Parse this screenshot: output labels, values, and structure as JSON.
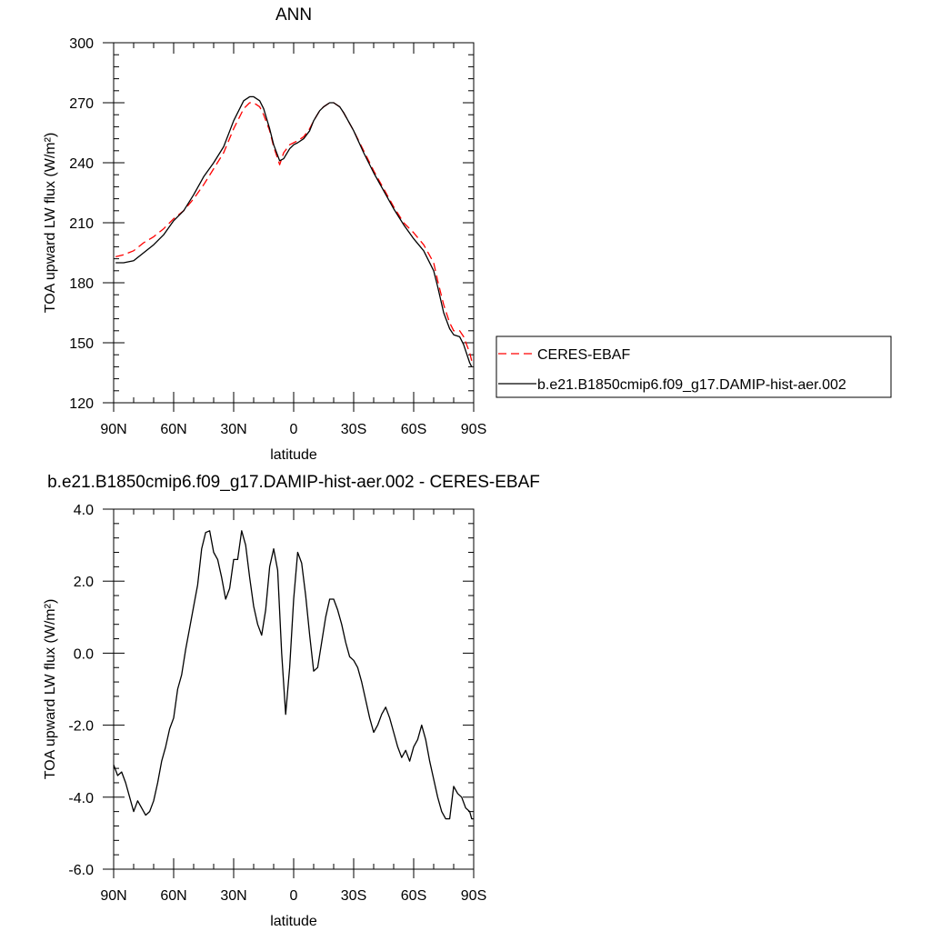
{
  "chart_data": [
    {
      "type": "line",
      "title": "ANN",
      "xlabel": "latitude",
      "ylabel": "TOA upward LW flux (W/m²)",
      "ylim": [
        120,
        300
      ],
      "yticks": [
        120,
        150,
        180,
        210,
        240,
        270,
        300
      ],
      "xlim": [
        90,
        -90
      ],
      "xticks": [
        90,
        60,
        30,
        0,
        -30,
        -60,
        -90
      ],
      "xticklabels": [
        "90N",
        "60N",
        "30N",
        "0",
        "30S",
        "60S",
        "90S"
      ],
      "legend": "outside-right",
      "series": [
        {
          "name": "CERES-EBAF",
          "color": "#ff0000",
          "dash": "dashed",
          "x": [
            89,
            85,
            80,
            75,
            70,
            65,
            60,
            55,
            50,
            45,
            40,
            35,
            30,
            25,
            22,
            20,
            17,
            15,
            12,
            10,
            7,
            5,
            2,
            0,
            -2,
            -5,
            -8,
            -10,
            -13,
            -15,
            -18,
            -20,
            -23,
            -25,
            -30,
            -35,
            -40,
            -45,
            -50,
            -55,
            -60,
            -65,
            -70,
            -72,
            -75,
            -78,
            -80,
            -83,
            -85,
            -88,
            -89
          ],
          "y": [
            193,
            194,
            196,
            200,
            203,
            207,
            212,
            216,
            222,
            229,
            237,
            245,
            257,
            267,
            270,
            270,
            268,
            264,
            256,
            248,
            239,
            245,
            249,
            250,
            251,
            253,
            257,
            261,
            266,
            268,
            270,
            270,
            268,
            265,
            256,
            246,
            236,
            227,
            218,
            210,
            205,
            199,
            190,
            181,
            169,
            160,
            156,
            156,
            153,
            145,
            141
          ]
        },
        {
          "name": "b.e21.B1850cmip6.f09_g17.DAMIP-hist-aer.002",
          "color": "#000000",
          "dash": "solid",
          "x": [
            89,
            85,
            80,
            75,
            70,
            65,
            60,
            55,
            50,
            45,
            40,
            35,
            30,
            25,
            22,
            20,
            17,
            15,
            12,
            10,
            7,
            5,
            2,
            0,
            -2,
            -5,
            -8,
            -10,
            -13,
            -15,
            -18,
            -20,
            -23,
            -25,
            -30,
            -35,
            -40,
            -45,
            -50,
            -55,
            -60,
            -65,
            -70,
            -72,
            -75,
            -78,
            -80,
            -83,
            -85,
            -88,
            -89
          ],
          "y": [
            190,
            190,
            191,
            195,
            199,
            204,
            211,
            216,
            224,
            233,
            240,
            248,
            261,
            271,
            273,
            273,
            271,
            267,
            257,
            249,
            241,
            242,
            247,
            249,
            250,
            252,
            256,
            261,
            266,
            268,
            270,
            270,
            268,
            265,
            256,
            245,
            235,
            226,
            217,
            209,
            202,
            196,
            186,
            178,
            165,
            157,
            154,
            153,
            149,
            140,
            138
          ]
        }
      ]
    },
    {
      "type": "line",
      "title": "b.e21.B1850cmip6.f09_g17.DAMIP-hist-aer.002 - CERES-EBAF",
      "xlabel": "latitude",
      "ylabel": "TOA upward LW flux (W/m²)",
      "ylim": [
        -6.0,
        4.0
      ],
      "yticks": [
        -6.0,
        -4.0,
        -2.0,
        0.0,
        2.0,
        4.0
      ],
      "yticklabels": [
        "-6.0",
        "-4.0",
        "-2.0",
        "0.0",
        "2.0",
        "4.0"
      ],
      "xlim": [
        90,
        -90
      ],
      "xticks": [
        90,
        60,
        30,
        0,
        -30,
        -60,
        -90
      ],
      "xticklabels": [
        "90N",
        "60N",
        "30N",
        "0",
        "30S",
        "60S",
        "90S"
      ],
      "series": [
        {
          "name": "",
          "color": "#000000",
          "dash": "solid",
          "x": [
            90,
            88,
            86,
            84,
            82,
            80,
            78,
            76,
            74,
            72,
            70,
            68,
            66,
            64,
            62,
            60,
            58,
            56,
            54,
            52,
            50,
            48,
            46,
            44,
            42,
            40,
            38,
            36,
            34,
            32,
            30,
            28,
            26,
            24,
            22,
            20,
            18,
            16,
            14,
            12,
            10,
            8,
            6,
            4,
            2,
            0,
            -2,
            -4,
            -6,
            -8,
            -10,
            -12,
            -14,
            -16,
            -18,
            -20,
            -22,
            -24,
            -26,
            -28,
            -30,
            -32,
            -34,
            -36,
            -38,
            -40,
            -42,
            -44,
            -46,
            -48,
            -50,
            -52,
            -54,
            -56,
            -58,
            -60,
            -62,
            -64,
            -66,
            -68,
            -70,
            -72,
            -74,
            -76,
            -78,
            -80,
            -82,
            -84,
            -86,
            -88,
            -89,
            -90
          ],
          "y": [
            -3.1,
            -3.4,
            -3.3,
            -3.6,
            -4.0,
            -4.4,
            -4.1,
            -4.3,
            -4.5,
            -4.4,
            -4.1,
            -3.6,
            -3.0,
            -2.6,
            -2.1,
            -1.8,
            -1.0,
            -0.6,
            0.1,
            0.7,
            1.3,
            1.9,
            2.9,
            3.35,
            3.4,
            2.8,
            2.6,
            2.1,
            1.5,
            1.8,
            2.6,
            2.6,
            3.4,
            3.0,
            2.1,
            1.3,
            0.8,
            0.5,
            1.2,
            2.4,
            2.9,
            2.3,
            0.0,
            -1.7,
            -0.4,
            1.5,
            2.8,
            2.5,
            1.6,
            0.5,
            -0.5,
            -0.4,
            0.3,
            1.0,
            1.5,
            1.5,
            1.2,
            0.8,
            0.3,
            -0.1,
            -0.2,
            -0.4,
            -0.8,
            -1.3,
            -1.8,
            -2.2,
            -2.0,
            -1.7,
            -1.5,
            -1.8,
            -2.2,
            -2.6,
            -2.9,
            -2.7,
            -3.0,
            -2.6,
            -2.4,
            -2.0,
            -2.4,
            -3.0,
            -3.5,
            -4.0,
            -4.4,
            -4.6,
            -4.6,
            -3.7,
            -3.9,
            -4.0,
            -4.3,
            -4.4,
            -4.6,
            -4.6
          ]
        }
      ]
    }
  ]
}
